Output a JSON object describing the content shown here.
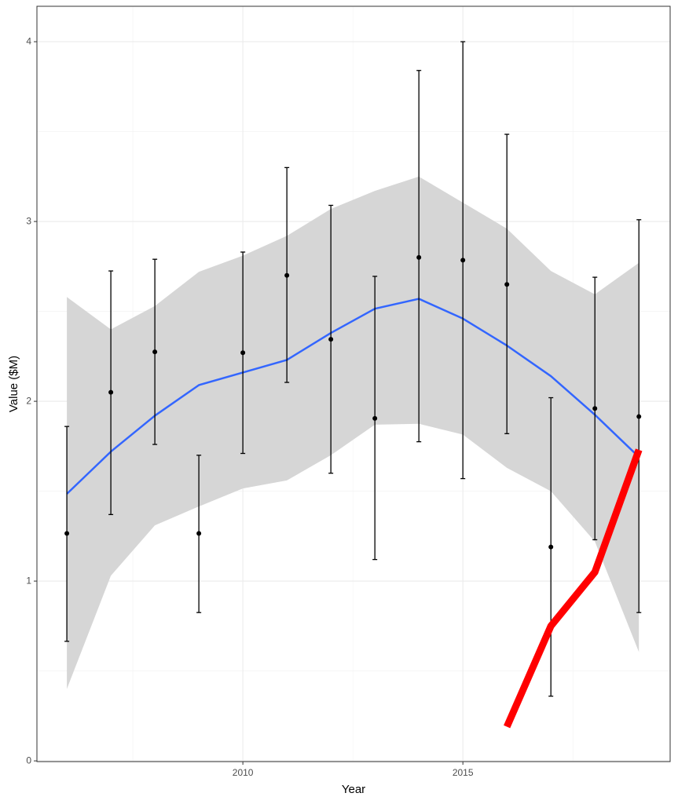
{
  "chart_data": {
    "type": "scatter",
    "x_label": "Year",
    "y_label": "Value ($M)",
    "x": [
      2006,
      2007,
      2008,
      2009,
      2010,
      2011,
      2012,
      2013,
      2014,
      2015,
      2016,
      2017,
      2018,
      2019
    ],
    "values": [
      1.265,
      2.05,
      2.275,
      1.265,
      2.27,
      2.7,
      2.345,
      1.905,
      2.8,
      2.785,
      2.65,
      1.19,
      1.96,
      1.915
    ],
    "lower": [
      0.665,
      1.37,
      1.76,
      0.825,
      1.71,
      2.105,
      1.6,
      1.12,
      1.775,
      1.57,
      1.82,
      0.36,
      1.23,
      0.825
    ],
    "upper": [
      1.86,
      2.725,
      2.79,
      1.7,
      2.83,
      3.3,
      3.09,
      2.695,
      3.84,
      4.0,
      3.485,
      2.02,
      2.69,
      3.01
    ],
    "color": "#000000",
    "smooth": {
      "x": [
        2006,
        2007,
        2008,
        2009,
        2010,
        2011,
        2012,
        2013,
        2014,
        2015,
        2016,
        2017,
        2018,
        2019
      ],
      "values": [
        1.485,
        1.72,
        1.92,
        2.09,
        2.16,
        2.23,
        2.38,
        2.515,
        2.57,
        2.46,
        2.31,
        2.14,
        1.925,
        1.69
      ],
      "lower": [
        0.4,
        1.03,
        1.31,
        1.415,
        1.515,
        1.56,
        1.7,
        1.87,
        1.875,
        1.815,
        1.63,
        1.5,
        1.22,
        0.605
      ],
      "upper": [
        2.58,
        2.4,
        2.53,
        2.72,
        2.81,
        2.92,
        3.07,
        3.17,
        3.25,
        3.105,
        2.96,
        2.725,
        2.595,
        2.77
      ],
      "color": "#3366ff",
      "fill": "#d4d4d4"
    },
    "line": {
      "x": [
        2016,
        2017,
        2018,
        2019
      ],
      "values": [
        0.19,
        0.75,
        1.05,
        1.73
      ],
      "color": "#ff0000"
    },
    "xlim": [
      2005.32,
      2019.71
    ],
    "xticks": [
      2010,
      2015
    ],
    "ylim": [
      -0.004,
      4.197
    ],
    "yticks": [
      0,
      1,
      2,
      3,
      4
    ],
    "grid": true
  }
}
